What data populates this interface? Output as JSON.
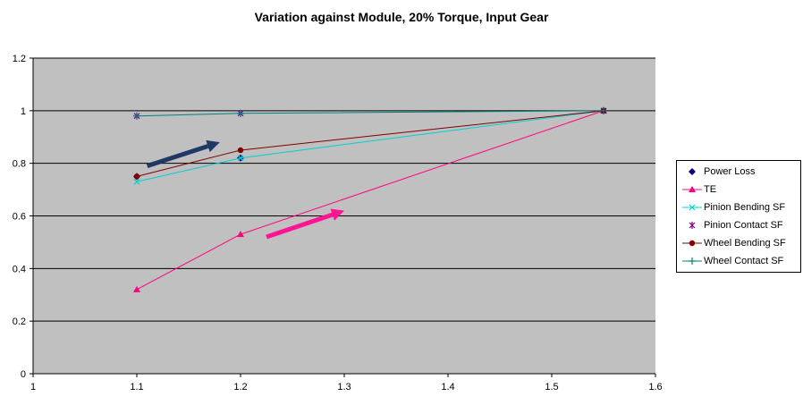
{
  "chart_data": {
    "type": "line",
    "title": "Variation against Module, 20%  Torque, Input Gear",
    "xlabel": "",
    "ylabel": "",
    "xlim": [
      1,
      1.6
    ],
    "ylim": [
      0,
      1.2
    ],
    "x_ticks": [
      "1",
      "1.1",
      "1.2",
      "1.3",
      "1.4",
      "1.5",
      "1.6"
    ],
    "y_ticks": [
      "0",
      "0.2",
      "0.4",
      "0.6",
      "0.8",
      "1",
      "1.2"
    ],
    "grid": "horizontal",
    "plot_background": "#c0c0c0",
    "legend_position": "right",
    "series": [
      {
        "name": "Power Loss",
        "color": "#000080",
        "marker": "diamond",
        "line": false,
        "points": [
          [
            1.1,
            0.75
          ],
          [
            1.2,
            0.82
          ],
          [
            1.55,
            1.0
          ]
        ]
      },
      {
        "name": "TE",
        "color": "#ff0080",
        "marker": "triangle",
        "line": true,
        "points": [
          [
            1.1,
            0.32
          ],
          [
            1.2,
            0.53
          ],
          [
            1.55,
            1.0
          ]
        ]
      },
      {
        "name": "Pinion Bending SF",
        "color": "#00d0d0",
        "marker": "x",
        "line": true,
        "points": [
          [
            1.1,
            0.73
          ],
          [
            1.2,
            0.82
          ],
          [
            1.55,
            1.0
          ]
        ]
      },
      {
        "name": "Pinion Contact SF",
        "color": "#800080",
        "marker": "star",
        "line": false,
        "points": [
          [
            1.1,
            0.98
          ],
          [
            1.2,
            0.99
          ],
          [
            1.55,
            1.0
          ]
        ]
      },
      {
        "name": "Wheel Bending SF",
        "color": "#800000",
        "marker": "circle",
        "line": true,
        "points": [
          [
            1.1,
            0.75
          ],
          [
            1.2,
            0.85
          ],
          [
            1.55,
            1.0
          ]
        ]
      },
      {
        "name": "Wheel Contact SF",
        "color": "#008080",
        "marker": "plus",
        "line": true,
        "points": [
          [
            1.1,
            0.98
          ],
          [
            1.2,
            0.99
          ],
          [
            1.55,
            1.0
          ]
        ]
      }
    ],
    "annotations": [
      {
        "kind": "arrow",
        "color": "#1f3864",
        "from": [
          1.11,
          0.79
        ],
        "to": [
          1.18,
          0.88
        ]
      },
      {
        "kind": "arrow",
        "color": "#ff1493",
        "from": [
          1.225,
          0.52
        ],
        "to": [
          1.3,
          0.62
        ]
      }
    ]
  }
}
